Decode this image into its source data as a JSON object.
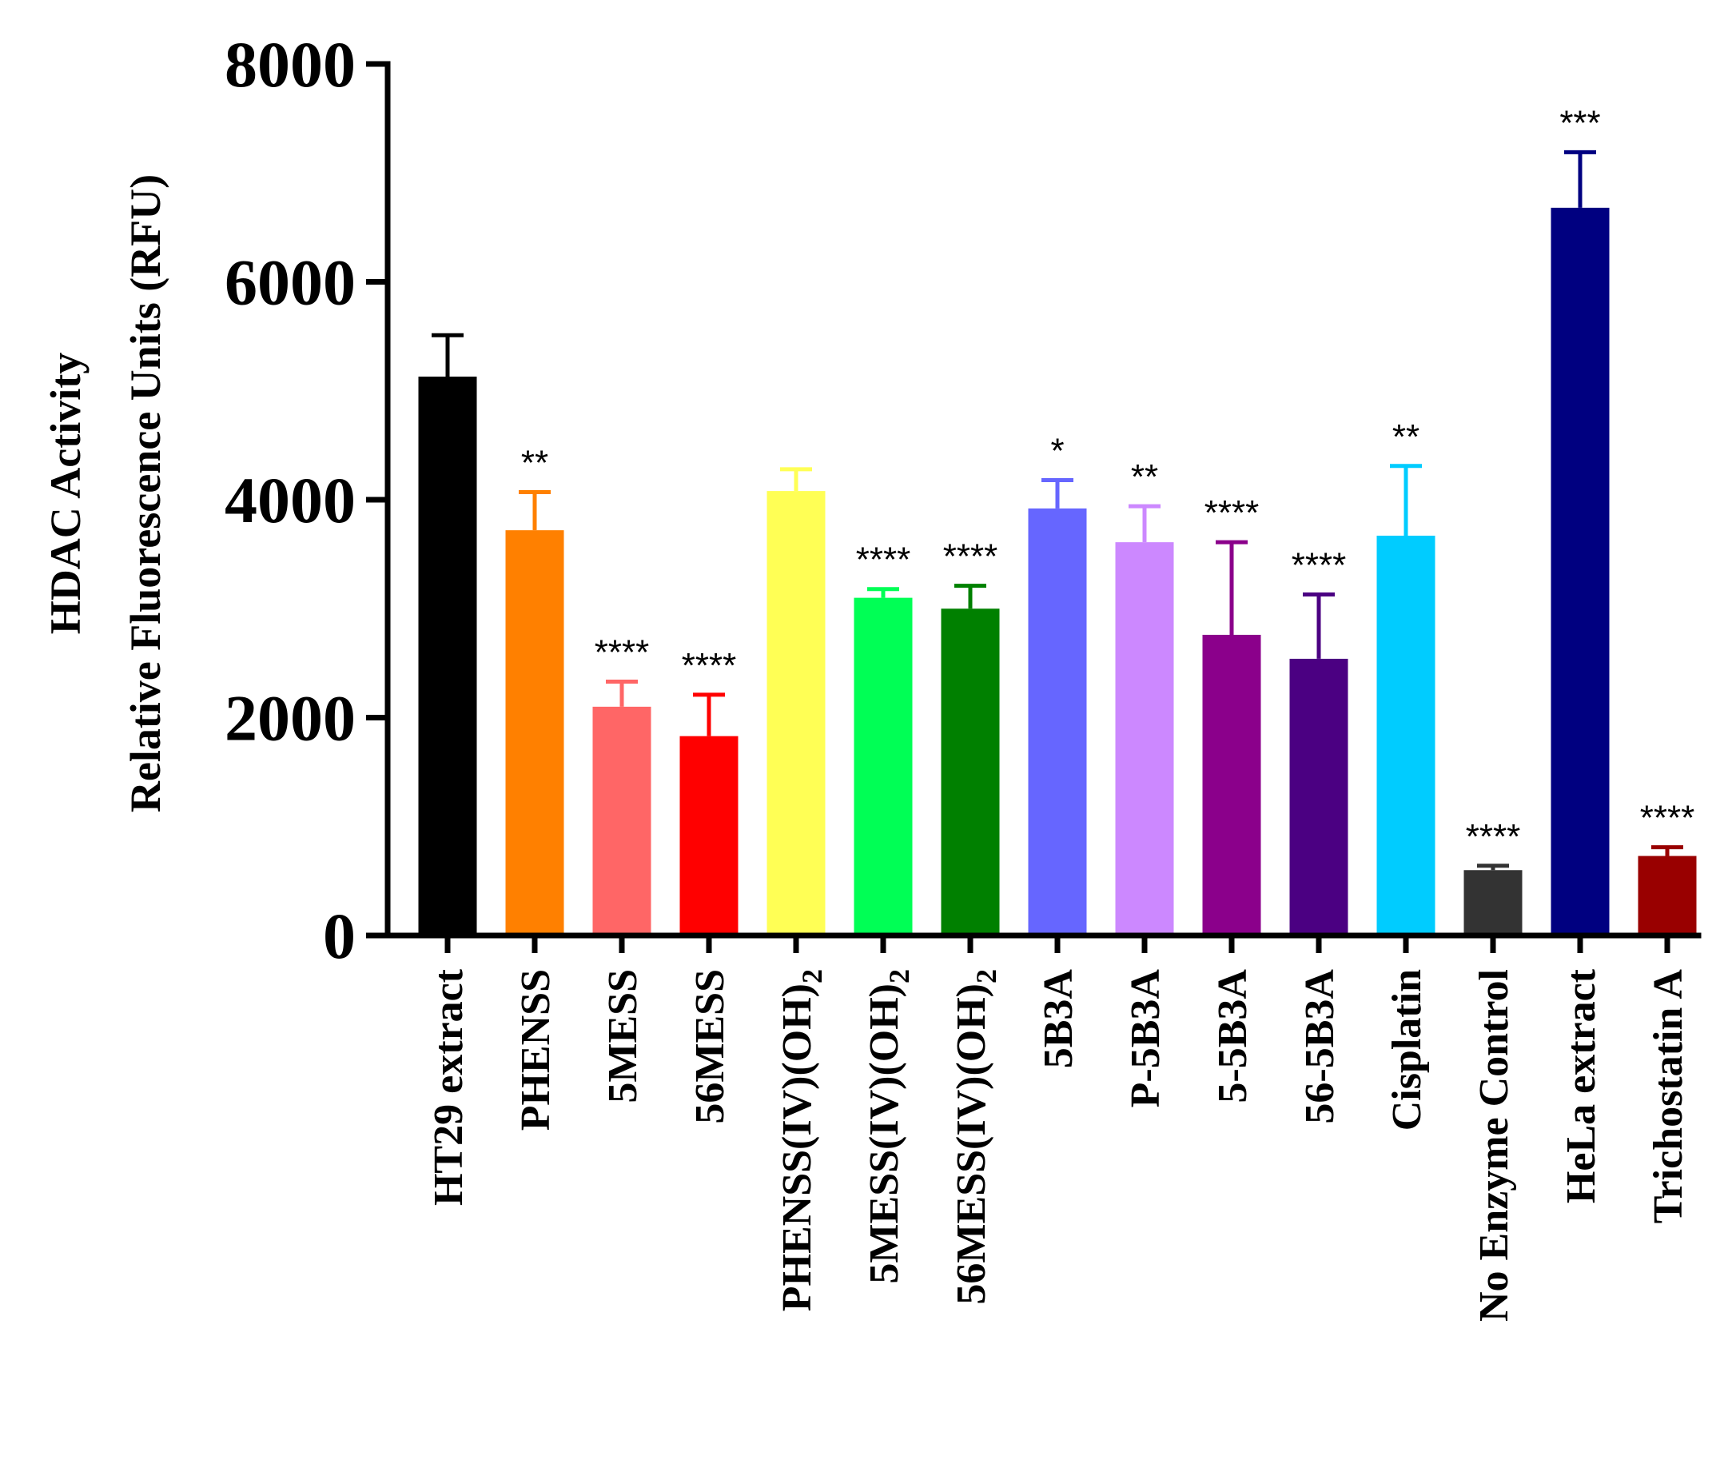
{
  "chart_data": {
    "type": "bar",
    "title": "",
    "ylabel_lines": [
      "HDAC Activity",
      "Relative Fluorescence Units (RFU)"
    ],
    "xlabel": "",
    "ylim": [
      0,
      8000
    ],
    "yticks": [
      0,
      2000,
      4000,
      6000,
      8000
    ],
    "ytick_labels": [
      "0",
      "2000",
      "4000",
      "6000",
      "8000"
    ],
    "grid": false,
    "legend": "none",
    "bars": [
      {
        "label": "HT29 extract",
        "sub": "",
        "value": 5130,
        "error": 380,
        "sig": "",
        "color": "#000000"
      },
      {
        "label": "PHENSS",
        "sub": "",
        "value": 3720,
        "error": 350,
        "sig": "**",
        "color": "#ff8000"
      },
      {
        "label": "5MESS",
        "sub": "",
        "value": 2100,
        "error": 230,
        "sig": "****",
        "color": "#ff6666"
      },
      {
        "label": "56MESS",
        "sub": "",
        "value": 1830,
        "error": 380,
        "sig": "****",
        "color": "#ff0000"
      },
      {
        "label": "PHENSS(IV)(OH)",
        "sub": "2",
        "value": 4080,
        "error": 200,
        "sig": "",
        "color": "#ffff55"
      },
      {
        "label": "5MESS(IV)(OH)",
        "sub": "2",
        "value": 3100,
        "error": 80,
        "sig": "****",
        "color": "#00ff55"
      },
      {
        "label": "56MESS(IV)(OH)",
        "sub": "2",
        "value": 3000,
        "error": 210,
        "sig": "****",
        "color": "#008000"
      },
      {
        "label": "5B3A",
        "sub": "",
        "value": 3920,
        "error": 260,
        "sig": "*",
        "color": "#6666ff"
      },
      {
        "label": "P-5B3A",
        "sub": "",
        "value": 3610,
        "error": 330,
        "sig": "**",
        "color": "#cc88ff"
      },
      {
        "label": "5-5B3A",
        "sub": "",
        "value": 2760,
        "error": 850,
        "sig": "****",
        "color": "#8b008b"
      },
      {
        "label": "56-5B3A",
        "sub": "",
        "value": 2540,
        "error": 590,
        "sig": "****",
        "color": "#4b0082"
      },
      {
        "label": "Cisplatin",
        "sub": "",
        "value": 3670,
        "error": 640,
        "sig": "**",
        "color": "#00ccff"
      },
      {
        "label": "No Enzyme Control",
        "sub": "",
        "value": 600,
        "error": 40,
        "sig": "****",
        "color": "#333333"
      },
      {
        "label": "HeLa extract",
        "sub": "",
        "value": 6680,
        "error": 510,
        "sig": "***",
        "color": "#000080"
      },
      {
        "label": "Trichostatin A",
        "sub": "",
        "value": 730,
        "error": 80,
        "sig": "****",
        "color": "#990000"
      }
    ]
  }
}
